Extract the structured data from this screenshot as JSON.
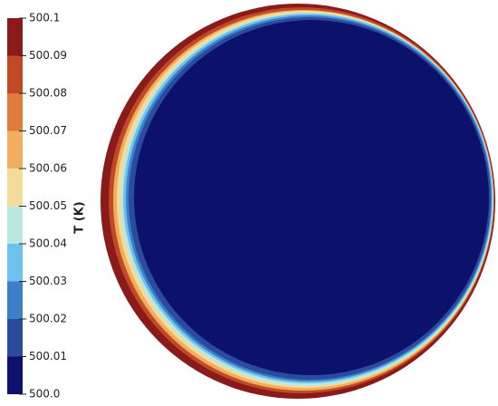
{
  "chart_data": {
    "type": "colorbar",
    "title": "T (K)",
    "ticks": [
      {
        "value": 500,
        "label": "500.0"
      },
      500.01,
      500.02,
      500.03,
      500.04,
      500.05,
      500.06,
      500.07,
      500.08,
      500.09,
      500.1
    ],
    "lim": [
      500,
      500.1
    ],
    "colors": [
      "#0c126b",
      "#2b4c9e",
      "#3d7ec8",
      "#6cc2ec",
      "#bae8df",
      "#f1dc9c",
      "#f3ad5e",
      "#e07b3c",
      "#c04a26",
      "#8b1a1a"
    ]
  }
}
